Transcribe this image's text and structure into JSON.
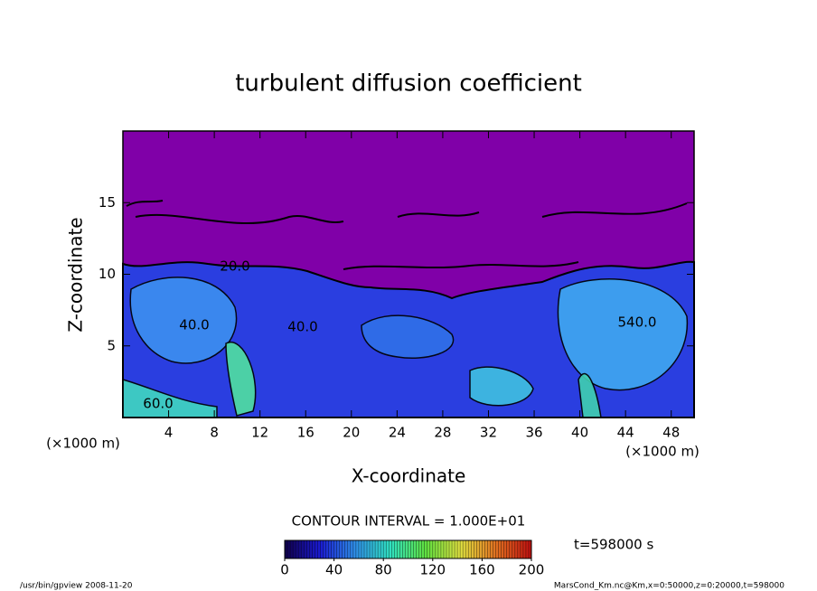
{
  "chart_data": {
    "type": "contour",
    "title": "turbulent diffusion coefficient",
    "x_label": "X-coordinate",
    "y_label": "Z-coordinate",
    "x_unit": "(×1000 m)",
    "y_unit": "(×1000 m)",
    "xlim": [
      0,
      50
    ],
    "xticks": [
      4,
      8,
      12,
      16,
      20,
      24,
      28,
      32,
      36,
      40,
      44,
      48
    ],
    "ylim": [
      0,
      20
    ],
    "yticks": [
      5,
      10,
      15
    ],
    "contour_labels": [
      "20.0",
      "40.0",
      "40.0",
      "60.0",
      "540.0"
    ],
    "contour_interval": "CONTOUR INTERVAL = 1.000E+01",
    "time_label": "t=598000 s",
    "colorbar": {
      "clim": [
        0,
        200
      ],
      "ticks": [
        0,
        40,
        80,
        120,
        160,
        200
      ],
      "colors": [
        "#10004a",
        "#1a1ad0",
        "#2f8fe8",
        "#30e0c0",
        "#60e040",
        "#e0e040",
        "#e07020",
        "#c01010"
      ]
    },
    "background_color": "#8000a8",
    "footer_left": "/usr/bin/gpview  2008-11-20",
    "footer_right": "MarsCond_Km.nc@Km,x=0:50000,z=0:20000,t=598000"
  }
}
